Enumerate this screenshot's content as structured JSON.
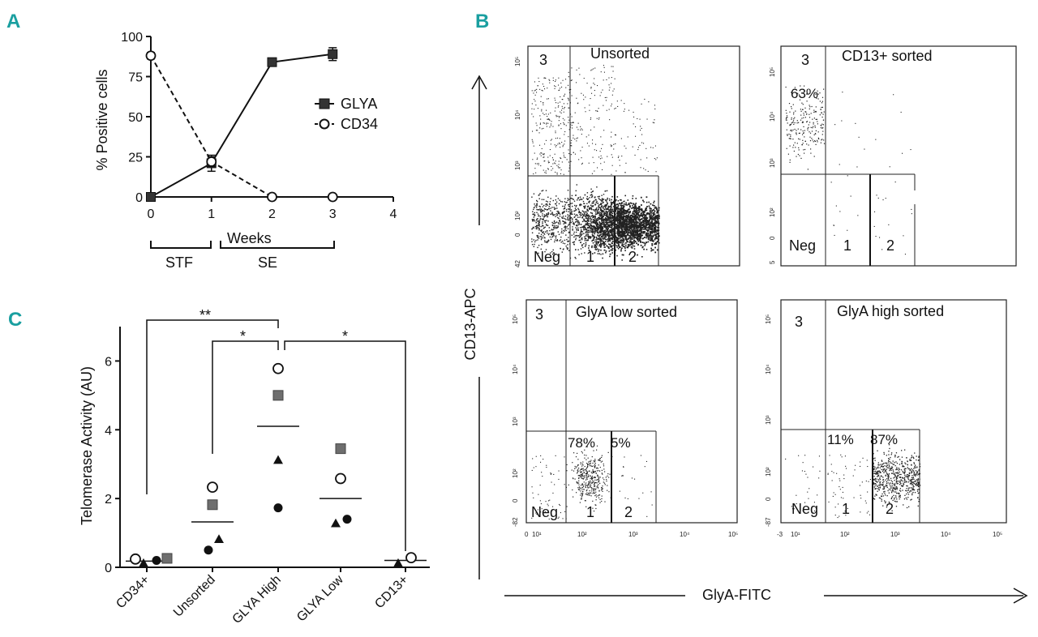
{
  "colors": {
    "accent": "#1a9fa0",
    "ink": "#111111",
    "gray_marker": "#6e6e6e"
  },
  "chart_data": [
    {
      "panel": "A",
      "type": "line",
      "xlabel": "Weeks",
      "ylabel": "% Positive cells",
      "xlim": [
        0,
        4
      ],
      "ylim": [
        0,
        100
      ],
      "x_ticks": [
        "0",
        "1",
        "2",
        "3",
        "4"
      ],
      "y_ticks": [
        "0",
        "25",
        "50",
        "75",
        "100"
      ],
      "series": [
        {
          "name": "GLYA",
          "marker": "filled-square",
          "line": "solid",
          "x": [
            0,
            1,
            2,
            3
          ],
          "y": [
            0,
            21,
            84,
            89
          ],
          "err": [
            0,
            5,
            0,
            4
          ]
        },
        {
          "name": "CD34",
          "marker": "open-circle",
          "line": "dashed",
          "x": [
            0,
            1,
            2,
            3
          ],
          "y": [
            88,
            22,
            0,
            0
          ],
          "err": [
            2,
            3,
            0,
            0
          ]
        }
      ],
      "legend": [
        "GLYA",
        "CD34"
      ],
      "phases": [
        {
          "label": "STF",
          "from": 0,
          "to": 1
        },
        {
          "label": "SE",
          "from": 1.15,
          "to": 3
        }
      ]
    },
    {
      "panel": "C",
      "type": "scatter",
      "ylabel": "Telomerase Activity  (AU)",
      "ylim": [
        0,
        7
      ],
      "y_ticks": [
        "0",
        "2",
        "4",
        "6"
      ],
      "categories": [
        "CD34+",
        "Unsorted",
        "GLYA High",
        "GLYA Low",
        "CD13+"
      ],
      "points": [
        {
          "cat": 0,
          "marker": "open-circle",
          "y": 0.24
        },
        {
          "cat": 0,
          "marker": "filled-triangle",
          "y": 0.12
        },
        {
          "cat": 0,
          "marker": "filled-circle",
          "y": 0.2
        },
        {
          "cat": 0,
          "marker": "gray-square",
          "y": 0.26
        },
        {
          "cat": 1,
          "marker": "open-circle",
          "y": 2.33
        },
        {
          "cat": 1,
          "marker": "gray-square",
          "y": 1.82
        },
        {
          "cat": 1,
          "marker": "filled-triangle",
          "y": 0.82
        },
        {
          "cat": 1,
          "marker": "filled-circle",
          "y": 0.5
        },
        {
          "cat": 2,
          "marker": "open-circle",
          "y": 5.78
        },
        {
          "cat": 2,
          "marker": "gray-square",
          "y": 5.0
        },
        {
          "cat": 2,
          "marker": "filled-triangle",
          "y": 3.12
        },
        {
          "cat": 2,
          "marker": "filled-circle",
          "y": 1.73
        },
        {
          "cat": 3,
          "marker": "gray-square",
          "y": 3.45
        },
        {
          "cat": 3,
          "marker": "open-circle",
          "y": 2.58
        },
        {
          "cat": 3,
          "marker": "filled-circle",
          "y": 1.4
        },
        {
          "cat": 3,
          "marker": "filled-triangle",
          "y": 1.28
        },
        {
          "cat": 4,
          "marker": "filled-triangle",
          "y": 0.12
        },
        {
          "cat": 4,
          "marker": "open-circle",
          "y": 0.28
        }
      ],
      "means": [
        0.18,
        1.32,
        4.1,
        2.0,
        0.2
      ],
      "significance": [
        {
          "from": 0,
          "to": 2,
          "label": "**"
        },
        {
          "from": 1,
          "to": 2,
          "label": "*"
        },
        {
          "from": 2,
          "to": 4,
          "label": "*"
        }
      ]
    }
  ],
  "panel_a": {
    "letter": "A",
    "legend_glya": "GLYA",
    "legend_cd34": "CD34",
    "xlabel": "Weeks",
    "ylabel": "% Positive cells",
    "phase_stf": "STF",
    "phase_se": "SE"
  },
  "panel_c": {
    "letter": "C",
    "ylabel": "Telomerase Activity  (AU)",
    "sig_double": "**",
    "sig_single_1": "*",
    "sig_single_2": "*"
  },
  "panel_b": {
    "letter": "B",
    "y_axis_label": "CD13-APC",
    "x_axis_label": "GlyA-FITC",
    "quadrant_3": "3",
    "quadrant_neg": "Neg",
    "quadrant_1": "1",
    "quadrant_2": "2",
    "plots": [
      {
        "title": "Unsorted",
        "pct_3": "",
        "pct_1": "",
        "pct_2": ""
      },
      {
        "title": "CD13+ sorted",
        "pct_3": "63%",
        "pct_1": "",
        "pct_2": ""
      },
      {
        "title": "GlyA low sorted",
        "pct_3": "",
        "pct_1": "78%",
        "pct_2": "5%"
      },
      {
        "title": "GlyA high sorted",
        "pct_3": "",
        "pct_1": "11%",
        "pct_2": "87%"
      }
    ],
    "y_ticks": [
      "10⁵",
      "10⁴",
      "10³",
      "10²",
      "0"
    ],
    "y_ticks_top_left_bottom": "42",
    "y_ticks_top_right_bottom": "5",
    "y_ticks_bottom_left_bottom": "-82",
    "y_ticks_bottom_right_bottom": "-87",
    "x_ticks_bottom_left": [
      "0",
      "10¹",
      "10²",
      "10³",
      "10⁴",
      "10⁵"
    ],
    "x_ticks_bottom_right": [
      "-3",
      "10¹",
      "10²",
      "10³",
      "10⁴",
      "10⁵"
    ]
  }
}
